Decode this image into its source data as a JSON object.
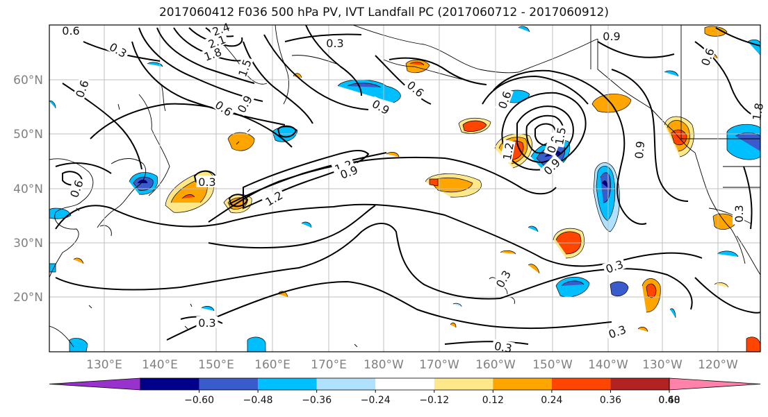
{
  "title": "2017060412 F036 500 hPa PV, IVT Landfall PC (2017060712 - 2017060912)",
  "lat_labels": [
    "60°N",
    "50°N",
    "40°N",
    "30°N",
    "20°N"
  ],
  "lon_labels": [
    "130°E",
    "140°E",
    "150°E",
    "160°E",
    "170°E",
    "180°W",
    "170°W",
    "160°W",
    "150°W",
    "140°W",
    "130°W",
    "120°W"
  ],
  "colorbar": {
    "tick_labels": [
      "−0.60",
      "−0.48",
      "−0.36",
      "−0.24",
      "−0.12",
      "0.12",
      "0.24",
      "0.36",
      "0.48",
      "0.60"
    ],
    "colors": [
      "#9932cc",
      "#00008b",
      "#3a5bcb",
      "#00bfff",
      "#b0e2ff",
      "#ffffff",
      "#ffe88a",
      "#ffa500",
      "#ff4500",
      "#b22222",
      "#ff82ab"
    ]
  },
  "contour_labels": [
    "0.6",
    "2.4",
    "2.1",
    "1.8",
    "1.5",
    "0.3",
    "0.3",
    "0.6",
    "0.6",
    "0.9",
    "0.6",
    "0.3",
    "1.2",
    "1.2",
    "0.9",
    "0.9",
    "0.6",
    "0.3",
    "0.3",
    "0.3",
    "0.3",
    "0.3",
    "0.9",
    "0.6",
    "1.2",
    "0.9",
    "0.9",
    "1.5",
    "1.8",
    "0.9",
    "0.6",
    "0.3"
  ]
}
